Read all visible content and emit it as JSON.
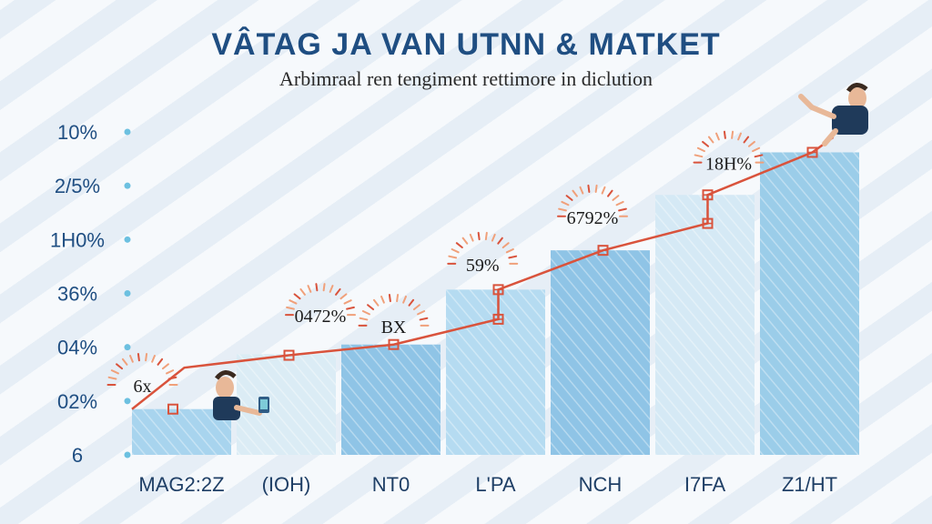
{
  "chart_data": {
    "type": "bar",
    "title": "VÂTAG JA VAN UTNN & MATKET",
    "subtitle": "Arbimraal ren tengiment rettimore in diclution",
    "y_tick_labels": [
      "10%",
      "2/5%",
      "1H0%",
      "36%",
      "04%",
      "02%",
      "6"
    ],
    "ylim": [
      0,
      6
    ],
    "categories": [
      "MAG2:2Z",
      "(IOH)",
      "NT0",
      "L'PA",
      "NCH",
      "I7FA",
      "Z1/HT"
    ],
    "values": [
      0.85,
      1.87,
      2.05,
      3.07,
      3.8,
      4.83,
      5.62
    ],
    "series": [
      {
        "values": [
          0.85,
          1.87,
          2.05,
          3.07,
          3.8,
          4.83,
          5.62
        ],
        "colors": [
          "#a8d4ee",
          "#dbecf5",
          "#8fc4e6",
          "#b5dbf1",
          "#8fc4e6",
          "#d5e9f5",
          "#9bcde9"
        ]
      }
    ],
    "line_points": [
      {
        "x": 0,
        "y": 0.85
      },
      {
        "x": 0.5,
        "y": 1.62
      },
      {
        "x": 1.5,
        "y": 1.85
      },
      {
        "x": 2.5,
        "y": 2.05
      },
      {
        "x": 3.5,
        "y": 2.52
      },
      {
        "x": 3.5,
        "y": 3.07
      },
      {
        "x": 4.5,
        "y": 3.8
      },
      {
        "x": 5.5,
        "y": 4.3
      },
      {
        "x": 5.5,
        "y": 4.83
      },
      {
        "x": 6.5,
        "y": 5.62
      },
      {
        "x": 6.7,
        "y": 5.9
      }
    ],
    "line_color": "#d9533c",
    "data_labels": [
      {
        "text": "6x",
        "x": 0.1,
        "y": 1.2
      },
      {
        "text": "0472%",
        "x": 1.8,
        "y": 2.5
      },
      {
        "text": "BX",
        "x": 2.5,
        "y": 2.3
      },
      {
        "text": "59%",
        "x": 3.35,
        "y": 3.45
      },
      {
        "text": "6792%",
        "x": 4.4,
        "y": 4.33
      },
      {
        "text": "18H%",
        "x": 5.7,
        "y": 5.33
      }
    ],
    "grid": false
  }
}
